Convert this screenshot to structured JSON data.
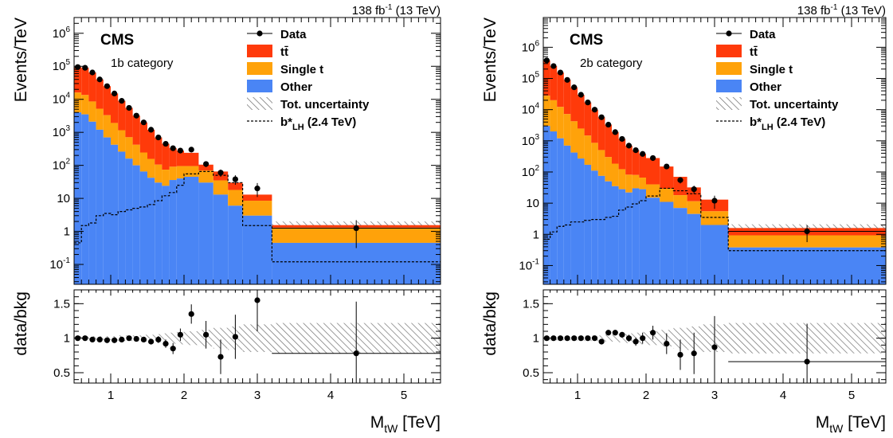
{
  "header_text": {
    "lumi": "138 fb",
    "lumi_exp": "-1",
    "energy": " (13 TeV)"
  },
  "legend": {
    "data": "Data",
    "ttbar": "tt̄",
    "single_t": "Single t",
    "other": "Other",
    "unc": "Tot. uncertainty",
    "signal": "b*",
    "signal_sub": "LH",
    "signal_mass": " (2.4 TeV)"
  },
  "colors": {
    "ttbar": "#ff3a0a",
    "single_t": "#ffa20a",
    "other": "#4a85f5",
    "signal": "#000000",
    "unc": "#888888"
  },
  "chart_data": [
    {
      "type": "bar",
      "experiment": "CMS",
      "category": "1b category",
      "xlabel": "M",
      "xlabel_sub": "tW",
      "xlabel_unit": " [TeV]",
      "ylabel": "Events/TeV",
      "ratio_ylabel": "data/bkg",
      "log_y": true,
      "xlim": [
        0.5,
        5.5
      ],
      "ylim": [
        0.025,
        3000000
      ],
      "ratio_ylim": [
        0.35,
        1.7
      ],
      "y_ticks": [
        {
          "v": 0.1,
          "m": "10",
          "e": "-1"
        },
        {
          "v": 1,
          "m": "1",
          "e": ""
        },
        {
          "v": 10,
          "m": "10",
          "e": ""
        },
        {
          "v": 100,
          "m": "10",
          "e": "2"
        },
        {
          "v": 1000,
          "m": "10",
          "e": "3"
        },
        {
          "v": 10000,
          "m": "10",
          "e": "4"
        },
        {
          "v": 100000,
          "m": "10",
          "e": "5"
        },
        {
          "v": 1000000,
          "m": "10",
          "e": "6"
        }
      ],
      "x_ticks": [
        "1",
        "2",
        "3",
        "4",
        "5"
      ],
      "ratio_ticks": [
        "0.5",
        "1",
        "1.5"
      ],
      "bin_edges": [
        0.5,
        0.6,
        0.7,
        0.8,
        0.9,
        1.0,
        1.1,
        1.2,
        1.3,
        1.4,
        1.5,
        1.6,
        1.7,
        1.8,
        1.9,
        2.0,
        2.2,
        2.4,
        2.6,
        2.8,
        3.2,
        5.5
      ],
      "other": [
        4000,
        3500,
        2100,
        1200,
        700,
        420,
        260,
        160,
        100,
        65,
        42,
        30,
        24,
        36,
        40,
        45,
        30,
        13,
        6,
        3.0,
        0.45
      ],
      "single_t": [
        12000,
        10000,
        6500,
        4000,
        2600,
        1500,
        900,
        550,
        320,
        180,
        115,
        75,
        50,
        55,
        55,
        50,
        40,
        22,
        12,
        5.5,
        0.85
      ],
      "total": [
        95000,
        90000,
        65000,
        40000,
        25000,
        15000,
        9000,
        5500,
        3200,
        2000,
        1200,
        700,
        450,
        330,
        280,
        240,
        105,
        65,
        30,
        13,
        1.55
      ],
      "unc_band": [
        1.5,
        2.0
      ],
      "signal": [
        0.45,
        1.5,
        1.8,
        3.0,
        3.5,
        3.2,
        4.0,
        4.5,
        5.0,
        5.5,
        6.5,
        8.5,
        12,
        15,
        25,
        55,
        65,
        50,
        30,
        1.5,
        0.12
      ],
      "data_x": [
        0.55,
        0.65,
        0.75,
        0.85,
        0.95,
        1.05,
        1.15,
        1.25,
        1.35,
        1.45,
        1.55,
        1.65,
        1.75,
        1.85,
        1.95,
        2.1,
        2.3,
        2.5,
        2.7,
        3.0,
        4.35
      ],
      "data_y": [
        95000,
        90000,
        65000,
        40000,
        25000,
        15000,
        9000,
        5500,
        3200,
        2000,
        1200,
        700,
        450,
        330,
        280,
        300,
        110,
        60,
        38,
        20,
        1.25
      ],
      "ratio": [
        1.0,
        1.0,
        0.98,
        0.98,
        0.97,
        0.97,
        0.98,
        1.0,
        0.99,
        0.98,
        0.95,
        0.98,
        0.92,
        0.85,
        1.05,
        1.35,
        1.05,
        0.73,
        1.02,
        1.55,
        0.78
      ],
      "ratio_err": [
        0.01,
        0.01,
        0.01,
        0.01,
        0.01,
        0.01,
        0.01,
        0.02,
        0.02,
        0.03,
        0.04,
        0.05,
        0.06,
        0.08,
        0.09,
        0.14,
        0.2,
        0.25,
        0.32,
        0.45,
        0.75
      ],
      "ratio_unc": [
        0.03,
        0.03,
        0.03,
        0.03,
        0.03,
        0.03,
        0.04,
        0.04,
        0.04,
        0.05,
        0.05,
        0.06,
        0.07,
        0.08,
        0.09,
        0.1,
        0.12,
        0.15,
        0.17,
        0.2,
        0.22
      ]
    },
    {
      "type": "bar",
      "experiment": "CMS",
      "category": "2b category",
      "xlabel": "M",
      "xlabel_sub": "tW",
      "xlabel_unit": " [TeV]",
      "ylabel": "Events/TeV",
      "ratio_ylabel": "data/bkg",
      "log_y": true,
      "xlim": [
        0.5,
        5.5
      ],
      "ylim": [
        0.025,
        9000000
      ],
      "ratio_ylim": [
        0.35,
        1.7
      ],
      "y_ticks": [
        {
          "v": 0.1,
          "m": "10",
          "e": "-1"
        },
        {
          "v": 1,
          "m": "1",
          "e": ""
        },
        {
          "v": 10,
          "m": "10",
          "e": ""
        },
        {
          "v": 100,
          "m": "10",
          "e": "2"
        },
        {
          "v": 1000,
          "m": "10",
          "e": "3"
        },
        {
          "v": 10000,
          "m": "10",
          "e": "4"
        },
        {
          "v": 100000,
          "m": "10",
          "e": "5"
        },
        {
          "v": 1000000,
          "m": "10",
          "e": "6"
        }
      ],
      "x_ticks": [
        "1",
        "2",
        "3",
        "4",
        "5"
      ],
      "ratio_ticks": [
        "0.5",
        "1",
        "1.5"
      ],
      "bin_edges": [
        0.5,
        0.6,
        0.7,
        0.8,
        0.9,
        1.0,
        1.1,
        1.2,
        1.3,
        1.4,
        1.5,
        1.6,
        1.7,
        1.8,
        1.9,
        2.0,
        2.2,
        2.4,
        2.6,
        2.8,
        3.2,
        5.5
      ],
      "other": [
        3000,
        2000,
        1200,
        700,
        420,
        270,
        170,
        110,
        75,
        50,
        35,
        28,
        22,
        30,
        28,
        15,
        11,
        7,
        4.5,
        2.0,
        0.38
      ],
      "single_t": [
        25000,
        18000,
        11000,
        6500,
        3800,
        2200,
        1300,
        750,
        430,
        250,
        150,
        95,
        60,
        50,
        38,
        25,
        18,
        11,
        7,
        3.5,
        0.55
      ],
      "total": [
        380000,
        250000,
        155000,
        90000,
        52000,
        30000,
        17000,
        10000,
        5700,
        3300,
        1900,
        1150,
        700,
        500,
        380,
        280,
        150,
        70,
        32,
        13,
        1.6
      ],
      "unc_band": [
        1.5,
        2.1
      ],
      "signal": [
        0.7,
        1.2,
        1.8,
        2.0,
        2.5,
        2.5,
        2.8,
        3.0,
        3.0,
        3.5,
        3.8,
        6.0,
        7.5,
        9.5,
        12,
        17,
        30,
        25,
        20,
        3.5,
        0.3
      ],
      "data_x": [
        0.55,
        0.65,
        0.75,
        0.85,
        0.95,
        1.05,
        1.15,
        1.25,
        1.35,
        1.45,
        1.55,
        1.65,
        1.75,
        1.85,
        1.95,
        2.1,
        2.3,
        2.5,
        2.7,
        3.0,
        4.35
      ],
      "data_y": [
        380000,
        250000,
        155000,
        90000,
        52000,
        30000,
        17000,
        10000,
        5700,
        3300,
        1900,
        1150,
        700,
        500,
        380,
        280,
        150,
        55,
        28,
        12,
        1.25
      ],
      "ratio": [
        1.0,
        1.0,
        1.0,
        1.0,
        1.0,
        1.0,
        1.0,
        1.0,
        0.95,
        1.08,
        1.08,
        1.05,
        1.0,
        0.95,
        1.0,
        1.08,
        0.92,
        0.76,
        0.78,
        0.87,
        0.66
      ],
      "ratio_err": [
        0.01,
        0.01,
        0.01,
        0.01,
        0.01,
        0.01,
        0.01,
        0.01,
        0.02,
        0.02,
        0.03,
        0.04,
        0.05,
        0.06,
        0.08,
        0.1,
        0.15,
        0.22,
        0.3,
        0.45,
        0.55
      ],
      "ratio_unc": [
        0.03,
        0.03,
        0.03,
        0.03,
        0.03,
        0.03,
        0.04,
        0.04,
        0.04,
        0.05,
        0.05,
        0.06,
        0.07,
        0.08,
        0.09,
        0.1,
        0.12,
        0.15,
        0.17,
        0.2,
        0.22
      ]
    }
  ]
}
